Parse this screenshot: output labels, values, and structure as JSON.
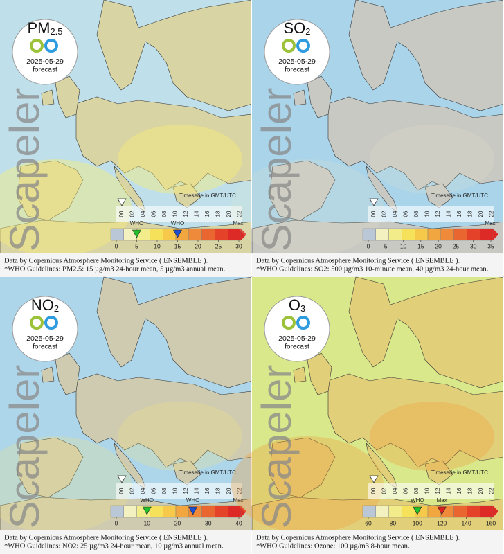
{
  "panels": [
    {
      "pollutant": "PM",
      "subscript": "2.5",
      "date": "2025-05-29",
      "forecast": "forecast",
      "watermark": "Scapeler",
      "timeserie": "Timeserie in GMT/UTC",
      "hours": [
        "00",
        "02",
        "04",
        "06",
        "08",
        "10",
        "12",
        "14",
        "16",
        "18",
        "20",
        "22"
      ],
      "scale_ticks": [
        0,
        5,
        10,
        15,
        20,
        25,
        30
      ],
      "max_label": "Max",
      "markers": [
        {
          "label": "WHO",
          "value": 5,
          "color": "#22c02a"
        },
        {
          "label": "WHO",
          "value": 15,
          "color": "#1e4fd0"
        }
      ],
      "footer": [
        "Data by Copernicus Atmosphere Monitoring Service ( ENSEMBLE ).",
        "*WHO Guidelines: PM2.5: 15 µg/m3 24-hour mean, 5 µg/m3 annual mean."
      ]
    },
    {
      "pollutant": "SO",
      "subscript": "2",
      "date": "2025-05-29",
      "forecast": "forecast",
      "watermark": "Scapeler",
      "timeserie": "Timeserie in GMT/UTC",
      "hours": [
        "00",
        "02",
        "04",
        "06",
        "08",
        "10",
        "12",
        "14",
        "16",
        "18",
        "20",
        "22"
      ],
      "scale_ticks": [
        0,
        5,
        10,
        15,
        20,
        25,
        30,
        35
      ],
      "max_label": "Max",
      "markers": [],
      "footer": [
        "Data by Copernicus Atmosphere Monitoring Service ( ENSEMBLE ).",
        "*WHO Guidelines: SO2: 500 µg/m3 10-minute mean, 40 µg/m3 24-hour mean."
      ]
    },
    {
      "pollutant": "NO",
      "subscript": "2",
      "date": "2025-05-29",
      "forecast": "forecast",
      "watermark": "Scapeler",
      "timeserie": "Timeserie in GMT/UTC",
      "hours": [
        "00",
        "02",
        "04",
        "06",
        "08",
        "10",
        "12",
        "14",
        "16",
        "18",
        "20",
        "22"
      ],
      "scale_ticks": [
        0,
        10,
        20,
        30,
        40
      ],
      "max_label": "Max",
      "markers": [
        {
          "label": "WHO",
          "value": 10,
          "color": "#22c02a"
        },
        {
          "label": "WHO",
          "value": 25,
          "color": "#1e4fd0"
        }
      ],
      "footer": [
        "Data by Copernicus Atmosphere Monitoring Service ( ENSEMBLE ).",
        "*WHO Guidelines: NO2: 25 µg/m3 24-hour mean, 10 µg/m3 annual mean."
      ]
    },
    {
      "pollutant": "O",
      "subscript": "3",
      "date": "2025-05-29",
      "forecast": "forecast",
      "watermark": "Scapeler",
      "timeserie": "Timeserie in GMT/UTC",
      "hours": [
        "00",
        "02",
        "04",
        "06",
        "08",
        "10",
        "12",
        "14",
        "16",
        "18",
        "20",
        "22"
      ],
      "scale_ticks": [
        60,
        80,
        100,
        120,
        140,
        160
      ],
      "markers": [
        {
          "label": "WHO",
          "value": 100,
          "color": "#22c02a"
        },
        {
          "label": "Max",
          "value": 120,
          "color": "#e02020"
        }
      ],
      "footer": [
        "Data by Copernicus Atmosphere Monitoring Service ( ENSEMBLE ).",
        "*WHO Guidelines: Ozone: 100 µg/m3 8-hour mean."
      ]
    }
  ]
}
